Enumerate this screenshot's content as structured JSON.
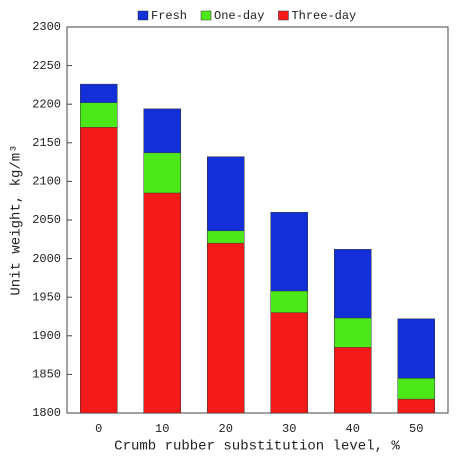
{
  "chart_data": {
    "type": "bar",
    "x_label": "Crumb rubber substitution level, %",
    "y_label": "Unit weight, kg/m³",
    "categories": [
      "0",
      "10",
      "20",
      "30",
      "40",
      "50"
    ],
    "series": [
      {
        "name": "Fresh",
        "color": "#1330d8",
        "values": [
          2226,
          2194,
          2132,
          2060,
          2012,
          1922
        ]
      },
      {
        "name": "One-day",
        "color": "#4de81a",
        "values": [
          2202,
          2137,
          2036,
          1958,
          1923,
          1845
        ]
      },
      {
        "name": "Three-day",
        "color": "#f51a1a",
        "values": [
          2170,
          2085,
          2020,
          1930,
          1885,
          1818
        ]
      }
    ],
    "ylim": [
      1800,
      2300
    ],
    "yticks": [
      1800,
      1850,
      1900,
      1950,
      2000,
      2050,
      2100,
      2150,
      2200,
      2250,
      2300
    ],
    "legend": "top"
  }
}
